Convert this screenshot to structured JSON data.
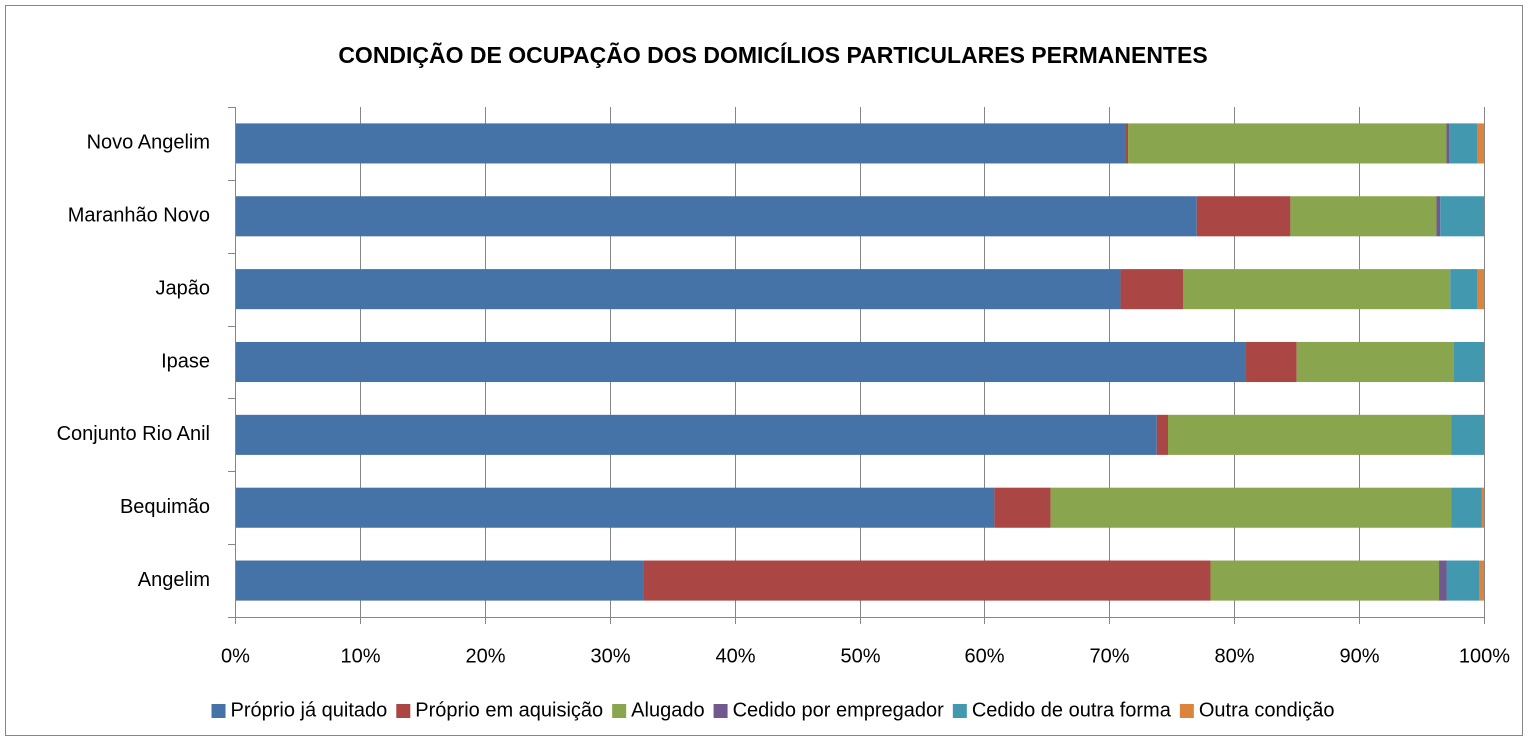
{
  "chart_data": {
    "type": "stacked_bar_horizontal",
    "title": "CONDIÇÃO DE OCUPAÇÃO DOS DOMICÍLIOS PARTICULARES PERMANENTES",
    "categories": [
      "Novo Angelim",
      "Maranhão Novo",
      "Japão",
      "Ipase",
      "Conjunto Rio Anil",
      "Bequimão",
      "Angelim"
    ],
    "series": [
      {
        "name": "Próprio já quitado",
        "color": "#4572a7",
        "values": [
          71.3,
          77.0,
          70.9,
          80.9,
          73.8,
          60.8,
          32.7
        ]
      },
      {
        "name": "Próprio em aquisição",
        "color": "#aa4643",
        "values": [
          0.2,
          7.5,
          5.0,
          4.1,
          0.9,
          4.5,
          45.4
        ]
      },
      {
        "name": "Alugado",
        "color": "#89a54e",
        "values": [
          25.5,
          11.7,
          21.4,
          12.6,
          22.7,
          32.1,
          18.3
        ]
      },
      {
        "name": "Cedido por empregador",
        "color": "#71588f",
        "values": [
          0.2,
          0.3,
          0,
          0,
          0,
          0,
          0.6
        ]
      },
      {
        "name": "Cedido de outra forma",
        "color": "#4198af",
        "values": [
          2.3,
          3.5,
          2.2,
          2.4,
          2.6,
          2.4,
          2.6
        ]
      },
      {
        "name": "Outra condição",
        "color": "#db843d",
        "values": [
          0.5,
          0,
          0.5,
          0,
          0,
          0.2,
          0.4
        ]
      }
    ],
    "xlim": [
      0,
      100
    ],
    "xticks": [
      {
        "value": 0,
        "label": "0%"
      },
      {
        "value": 10,
        "label": "10%"
      },
      {
        "value": 20,
        "label": "20%"
      },
      {
        "value": 30,
        "label": "30%"
      },
      {
        "value": 40,
        "label": "40%"
      },
      {
        "value": 50,
        "label": "50%"
      },
      {
        "value": 60,
        "label": "60%"
      },
      {
        "value": 70,
        "label": "70%"
      },
      {
        "value": 80,
        "label": "80%"
      },
      {
        "value": 90,
        "label": "90%"
      },
      {
        "value": 100,
        "label": "100%"
      }
    ],
    "grid": true,
    "legend": "bottom"
  }
}
